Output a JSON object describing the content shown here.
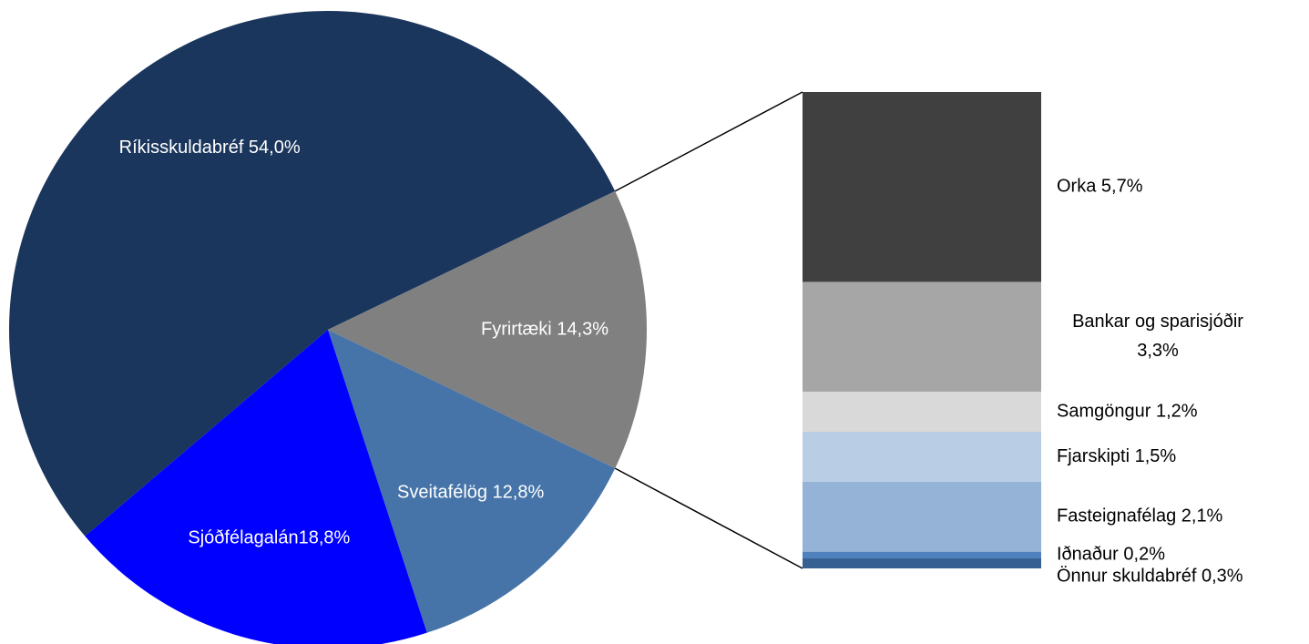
{
  "chart_data": [
    {
      "type": "pie",
      "labels": [
        "Ríkisskuldabréf 54,0%",
        "Fyrirtæki 14,3%",
        "Sveitafélög 12,8%",
        "Sjóðfélagalán18,8%"
      ],
      "values": [
        54.0,
        14.3,
        12.8,
        18.8
      ],
      "colors": [
        "#1b365d",
        "#808080",
        "#4674a8",
        "#0000ff"
      ],
      "label_color": "#ffffff"
    },
    {
      "type": "stacked-bar",
      "labels": [
        "Orka 5,7%",
        "Bankar og sparisjóðir\n3,3%",
        "Samgöngur 1,2%",
        "Fjarskipti 1,5%",
        "Fasteignafélag 2,1%",
        "Iðnaður 0,2%",
        "Önnur skuldabréf 0,3%"
      ],
      "values": [
        5.7,
        3.3,
        1.2,
        1.5,
        2.1,
        0.2,
        0.3
      ],
      "colors": [
        "#404040",
        "#a6a6a6",
        "#d9d9d9",
        "#b9cde5",
        "#95b3d7",
        "#4f81bd",
        "#376092"
      ],
      "label_color": "#000000"
    }
  ]
}
